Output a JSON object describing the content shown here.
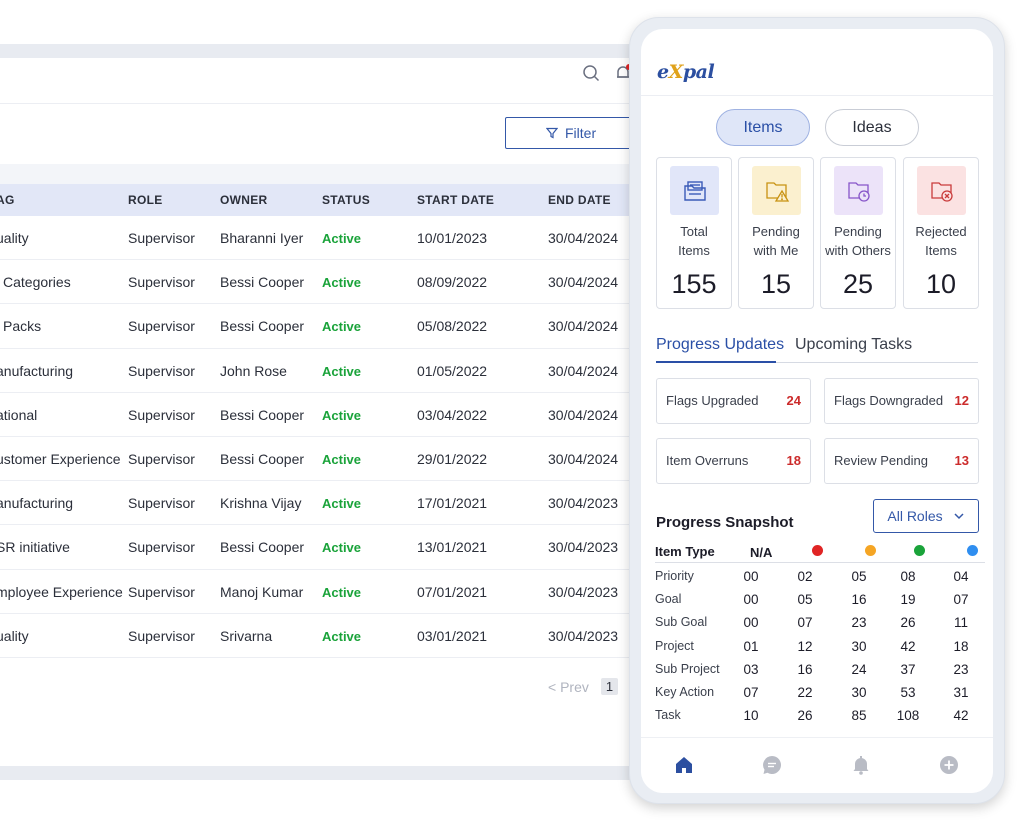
{
  "desktop": {
    "filter_label": "Filter",
    "columns": [
      "AG",
      "ROLE",
      "OWNER",
      "STATUS",
      "START DATE",
      "END DATE"
    ],
    "rows": [
      {
        "tag": "uality",
        "role": "Supervisor",
        "owner": "Bharanni Iyer",
        "status": "Active",
        "start": "10/01/2023",
        "end": "30/04/2024"
      },
      {
        "tag": "l Categories",
        "role": "Supervisor",
        "owner": "Bessi Cooper",
        "status": "Active",
        "start": "08/09/2022",
        "end": "30/04/2024"
      },
      {
        "tag": "l Packs",
        "role": "Supervisor",
        "owner": "Bessi Cooper",
        "status": "Active",
        "start": "05/08/2022",
        "end": "30/04/2024"
      },
      {
        "tag": "anufacturing",
        "role": "Supervisor",
        "owner": "John Rose",
        "status": "Active",
        "start": "01/05/2022",
        "end": "30/04/2024"
      },
      {
        "tag": "ational",
        "role": "Supervisor",
        "owner": "Bessi Cooper",
        "status": "Active",
        "start": "03/04/2022",
        "end": "30/04/2024"
      },
      {
        "tag": "ustomer Experience",
        "role": "Supervisor",
        "owner": "Bessi Cooper",
        "status": "Active",
        "start": "29/01/2022",
        "end": "30/04/2024"
      },
      {
        "tag": "anufacturing",
        "role": "Supervisor",
        "owner": "Krishna Vijay",
        "status": "Active",
        "start": "17/01/2021",
        "end": "30/04/2023"
      },
      {
        "tag": "SR initiative",
        "role": "Supervisor",
        "owner": "Bessi Cooper",
        "status": "Active",
        "start": "13/01/2021",
        "end": "30/04/2023"
      },
      {
        "tag": "mployee Experience",
        "role": "Supervisor",
        "owner": "Manoj Kumar",
        "status": "Active",
        "start": "07/01/2021",
        "end": "30/04/2023"
      },
      {
        "tag": "uality",
        "role": "Supervisor",
        "owner": "Srivarna",
        "status": "Active",
        "start": "03/01/2021",
        "end": "30/04/2023"
      }
    ],
    "pager": {
      "prev": "< Prev",
      "page": "1"
    },
    "icons": {
      "search": "search-icon",
      "bell": "bell-icon",
      "filter": "filter-icon"
    }
  },
  "phone": {
    "logo": {
      "e": "e",
      "x": "X",
      "pal": "pal"
    },
    "segments": {
      "items": "Items",
      "ideas": "Ideas"
    },
    "cards": [
      {
        "line1": "Total",
        "line2": "Items",
        "value": "155",
        "icon": "folder-list-icon"
      },
      {
        "line1": "Pending",
        "line2": "with Me",
        "value": "15",
        "icon": "folder-warning-icon"
      },
      {
        "line1": "Pending",
        "line2": "with Others",
        "value": "25",
        "icon": "folder-clock-icon"
      },
      {
        "line1": "Rejected",
        "line2": "Items",
        "value": "10",
        "icon": "folder-x-icon"
      }
    ],
    "tabs": {
      "progress": "Progress Updates",
      "upcoming": "Upcoming Tasks"
    },
    "progress": [
      {
        "label": "Flags Upgraded",
        "value": "24"
      },
      {
        "label": "Flags Downgraded",
        "value": "12"
      },
      {
        "label": "Item Overruns",
        "value": "18"
      },
      {
        "label": "Review Pending",
        "value": "13"
      }
    ],
    "snapshot": {
      "title": "Progress Snapshot",
      "roles_label": "All Roles",
      "col_type": "Item Type",
      "col_na": "N/A",
      "rows": [
        {
          "name": "Priority",
          "values": [
            "00",
            "02",
            "05",
            "08",
            "04"
          ]
        },
        {
          "name": "Goal",
          "values": [
            "00",
            "05",
            "16",
            "19",
            "07"
          ]
        },
        {
          "name": "Sub Goal",
          "values": [
            "00",
            "07",
            "23",
            "26",
            "11"
          ]
        },
        {
          "name": "Project",
          "values": [
            "01",
            "12",
            "30",
            "42",
            "18"
          ]
        },
        {
          "name": "Sub Project",
          "values": [
            "03",
            "16",
            "24",
            "37",
            "23"
          ]
        },
        {
          "name": "Key Action",
          "values": [
            "07",
            "22",
            "30",
            "53",
            "31"
          ]
        },
        {
          "name": "Task",
          "values": [
            "10",
            "26",
            "85",
            "108",
            "42"
          ]
        }
      ]
    },
    "nav": [
      "home-icon",
      "chat-icon",
      "bell-icon",
      "add-icon"
    ]
  },
  "colors": {
    "accent": "#2a4fa6",
    "status_active": "#1aa33a",
    "alert_red": "#cc2b2b",
    "dot_red": "#e02424",
    "dot_orange": "#f5a524",
    "dot_green": "#1aa33a",
    "dot_blue": "#2f8ef0",
    "notif_red": "#e02424"
  }
}
